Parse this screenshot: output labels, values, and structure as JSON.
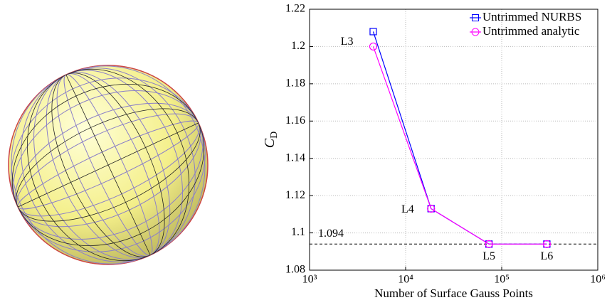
{
  "chart_data": {
    "type": "line",
    "x_label": "Number of Surface Gauss Points",
    "y_label": "C",
    "y_label_subscript": "D",
    "x": [
      4600,
      18400,
      73700,
      295000
    ],
    "series": [
      {
        "name": "Untrimmed NURBS",
        "color": "#0000ff",
        "marker": "square",
        "values": [
          1.208,
          1.113,
          1.094,
          1.094
        ]
      },
      {
        "name": "Untrimmed analytic",
        "color": "#ff00ff",
        "marker": "circle",
        "values": [
          1.2,
          1.113,
          1.094,
          1.094
        ]
      }
    ],
    "point_labels": [
      "L3",
      "L4",
      "L5",
      "L6"
    ],
    "reference_line": {
      "value": 1.094
    },
    "x_log": true,
    "xlim": [
      1000,
      1000000
    ],
    "xticks": [
      {
        "value": 1000,
        "label": "10³"
      },
      {
        "value": 10000,
        "label": "10⁴"
      },
      {
        "value": 100000,
        "label": "10⁵"
      },
      {
        "value": 1000000,
        "label": "10⁶"
      }
    ],
    "ylim": [
      1.08,
      1.22
    ],
    "yticks": [
      1.08,
      1.1,
      1.12,
      1.14,
      1.16,
      1.18,
      1.2,
      1.22
    ],
    "grid": true,
    "legend": "top-right"
  }
}
